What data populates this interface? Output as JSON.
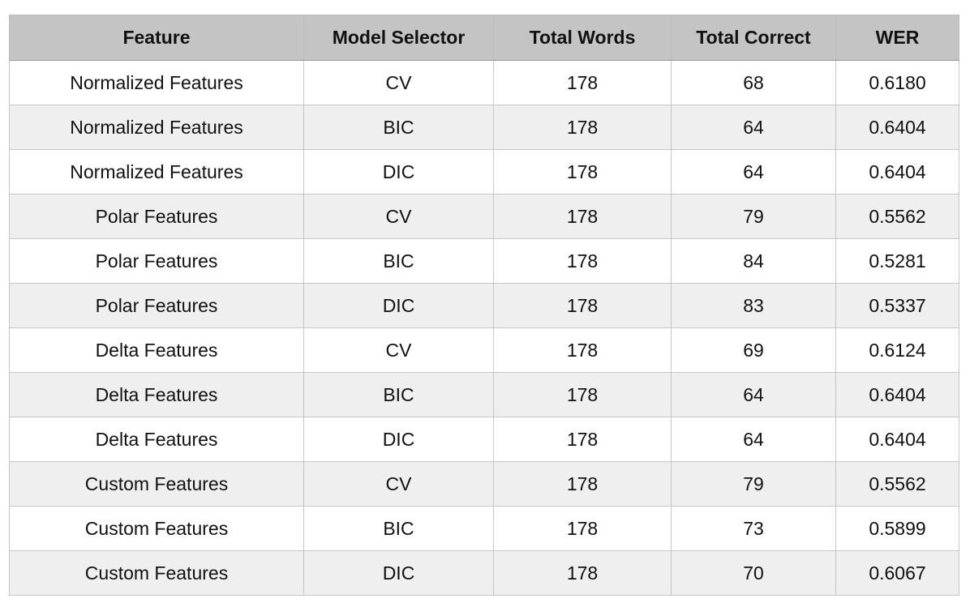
{
  "table": {
    "headers": [
      "Feature",
      "Model Selector",
      "Total Words",
      "Total Correct",
      "WER"
    ],
    "rows": [
      [
        "Normalized Features",
        "CV",
        "178",
        "68",
        "0.6180"
      ],
      [
        "Normalized Features",
        "BIC",
        "178",
        "64",
        "0.6404"
      ],
      [
        "Normalized Features",
        "DIC",
        "178",
        "64",
        "0.6404"
      ],
      [
        "Polar Features",
        "CV",
        "178",
        "79",
        "0.5562"
      ],
      [
        "Polar Features",
        "BIC",
        "178",
        "84",
        "0.5281"
      ],
      [
        "Polar Features",
        "DIC",
        "178",
        "83",
        "0.5337"
      ],
      [
        "Delta Features",
        "CV",
        "178",
        "69",
        "0.6124"
      ],
      [
        "Delta Features",
        "BIC",
        "178",
        "64",
        "0.6404"
      ],
      [
        "Delta Features",
        "DIC",
        "178",
        "64",
        "0.6404"
      ],
      [
        "Custom Features",
        "CV",
        "178",
        "79",
        "0.5562"
      ],
      [
        "Custom Features",
        "BIC",
        "178",
        "73",
        "0.5899"
      ],
      [
        "Custom Features",
        "DIC",
        "178",
        "70",
        "0.6067"
      ]
    ]
  },
  "colors": {
    "header_background": "#c4c4c4",
    "row_odd": "#ffffff",
    "row_even": "#efefef",
    "text": "#111111"
  }
}
